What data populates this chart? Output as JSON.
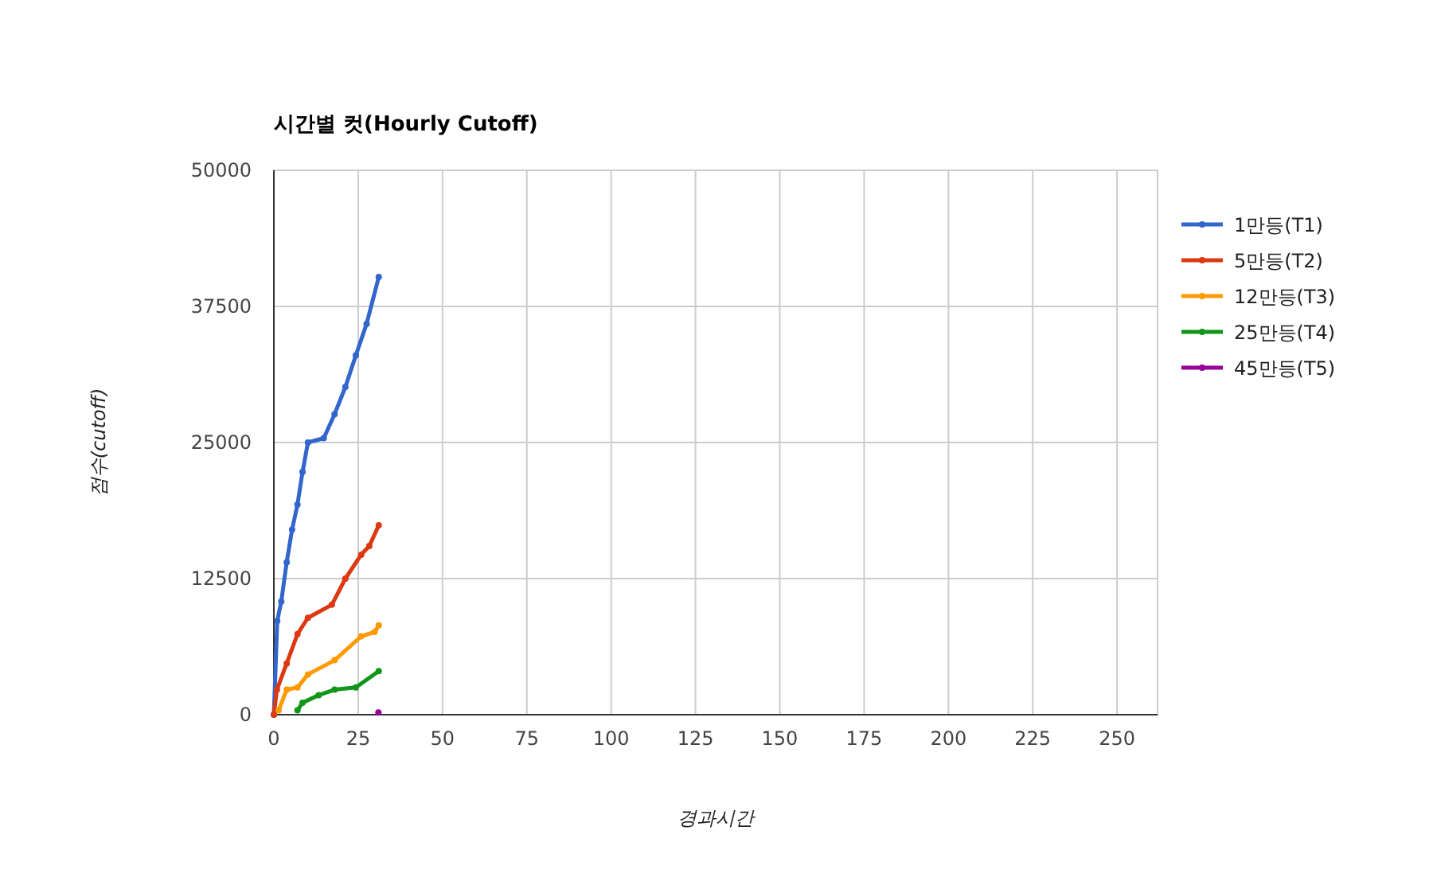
{
  "chart_data": {
    "type": "line",
    "title": "시간별 컷(Hourly Cutoff)",
    "xlabel": "경과시간",
    "ylabel": "점수(cutoff)",
    "xlim": [
      0,
      262
    ],
    "ylim": [
      0,
      50000
    ],
    "xticks": [
      0,
      25,
      50,
      75,
      100,
      125,
      150,
      175,
      200,
      225,
      250
    ],
    "yticks": [
      0,
      12500,
      25000,
      37500,
      50000
    ],
    "grid": true,
    "legend": "right",
    "marker": "circle",
    "series": [
      {
        "name": "1만등(T1)",
        "color": "#3366cc",
        "x": [
          0,
          1,
          2.2,
          3.8,
          5.4,
          7,
          8.5,
          10.1,
          14.8,
          18,
          21.2,
          24.3,
          27.5,
          31.1
        ],
        "values": [
          0,
          8600,
          10400,
          14000,
          17000,
          19300,
          22300,
          25000,
          25400,
          27600,
          30100,
          33000,
          35900,
          40200
        ]
      },
      {
        "name": "5만등(T2)",
        "color": "#dc3912",
        "x": [
          0,
          0.9,
          3.8,
          7,
          10.1,
          17.2,
          21.2,
          25.9,
          28.3,
          31.1
        ],
        "values": [
          0,
          2300,
          4700,
          7400,
          8900,
          10100,
          12500,
          14700,
          15500,
          17400
        ]
      },
      {
        "name": "12만등(T3)",
        "color": "#ff9900",
        "x": [
          1.4,
          3.8,
          7,
          10.1,
          18,
          25.9,
          29.9,
          31.1
        ],
        "values": [
          400,
          2300,
          2500,
          3700,
          5000,
          7200,
          7600,
          8200
        ]
      },
      {
        "name": "25만등(T4)",
        "color": "#109618",
        "x": [
          7,
          8.5,
          13.3,
          18,
          24.3,
          31.1
        ],
        "values": [
          400,
          1100,
          1800,
          2300,
          2500,
          4000
        ]
      },
      {
        "name": "45만등(T5)",
        "color": "#990099",
        "x": [
          31
        ],
        "values": [
          200
        ]
      }
    ]
  }
}
